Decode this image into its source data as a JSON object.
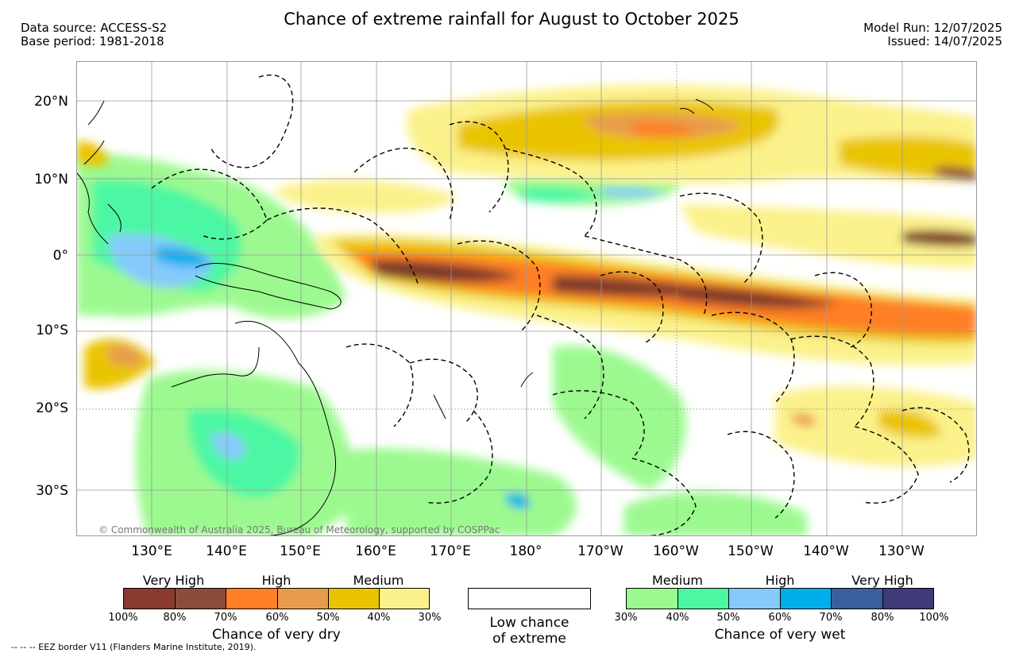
{
  "title": "Chance of extreme rainfall for August to October 2025",
  "data_source": "Data source: ACCESS-S2",
  "base_period": "Base period: 1981-2018",
  "model_run": "Model Run: 12/07/2025",
  "issued": "Issued: 14/07/2025",
  "lat_labels": [
    "20°N",
    "10°N",
    "0°",
    "10°S",
    "20°S",
    "30°S"
  ],
  "lon_labels": [
    "130°E",
    "140°E",
    "150°E",
    "160°E",
    "170°E",
    "180°",
    "170°W",
    "160°W",
    "150°W",
    "140°W",
    "130°W"
  ],
  "map": {
    "region": "Western and Central Pacific, Australia",
    "lat_range": [
      -36,
      25
    ],
    "lon_range": [
      120,
      240
    ],
    "gridlines": true,
    "eez_borders": "dashed",
    "dry_band": "equatorial band 0° to 10°S from 155°E to 120°W — Very High chance of very dry",
    "wet_region": "Maritime Continent, Philippines, northern & eastern Australia — Medium to High chance of very wet"
  },
  "credit": "© Commonwealth of Australia 2025, Bureau of Meteorology, supported by COSPPac",
  "legend_dry": {
    "title": "Chance of very dry",
    "categories": [
      "Very High",
      "High",
      "Medium"
    ],
    "ticks": [
      "100%",
      "80%",
      "70%",
      "60%",
      "50%",
      "40%",
      "30%"
    ],
    "colors": [
      "#8b3a2f",
      "#8a4c3c",
      "#ff7f27",
      "#e89b4c",
      "#eac400",
      "#fbf18a"
    ]
  },
  "legend_low": {
    "line1": "Low chance",
    "line2": "of extreme"
  },
  "legend_wet": {
    "title": "Chance of very wet",
    "categories": [
      "Medium",
      "High",
      "Very High"
    ],
    "ticks": [
      "30%",
      "40%",
      "50%",
      "60%",
      "70%",
      "80%",
      "100%"
    ],
    "colors": [
      "#9cf98f",
      "#4cf7a2",
      "#86c9fb",
      "#00aeec",
      "#3a5f9c",
      "#3f3b78"
    ]
  },
  "footnote": "--  --  -- EEZ border V11 (Flanders Marine Institute, 2019)."
}
